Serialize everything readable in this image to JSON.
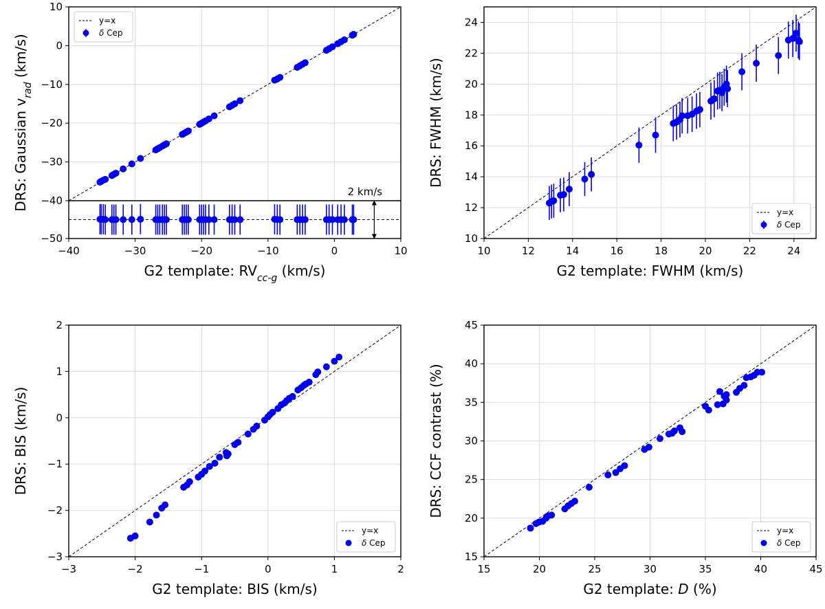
{
  "chart_data": [
    {
      "id": "a",
      "type": "scatter",
      "xlabel": "G2 template: RV_{cc-g} (km/s)",
      "ylabel": "DRS: Gaussian v_{rad} (km/s)",
      "xlim": [
        -40,
        10
      ],
      "ylim": [
        -40,
        10
      ],
      "xticks": [
        -40,
        -30,
        -20,
        -10,
        0,
        10
      ],
      "yticks": [
        -30,
        -20,
        -10,
        0,
        10
      ],
      "grid": true,
      "legend_position": "upper-left",
      "legend": [
        "y=x",
        "δ Cep"
      ],
      "color": "#0000ee",
      "reference_line": "y=x",
      "points": [
        [
          -35.3,
          -35.2
        ],
        [
          -35.1,
          -35.0
        ],
        [
          -34.8,
          -34.7
        ],
        [
          -34.5,
          -34.5
        ],
        [
          -33.5,
          -33.5
        ],
        [
          -33.2,
          -33.2
        ],
        [
          -32.9,
          -32.9
        ],
        [
          -31.8,
          -31.8
        ],
        [
          -30.5,
          -30.5
        ],
        [
          -29.2,
          -29.1
        ],
        [
          -26.9,
          -26.9
        ],
        [
          -26.6,
          -26.6
        ],
        [
          -26.3,
          -26.3
        ],
        [
          -25.9,
          -25.9
        ],
        [
          -25.6,
          -25.6
        ],
        [
          -25.3,
          -25.3
        ],
        [
          -22.9,
          -22.9
        ],
        [
          -22.6,
          -22.6
        ],
        [
          -22.3,
          -22.3
        ],
        [
          -22.0,
          -22.0
        ],
        [
          -20.3,
          -20.3
        ],
        [
          -20.0,
          -20.0
        ],
        [
          -19.7,
          -19.7
        ],
        [
          -19.4,
          -19.4
        ],
        [
          -18.9,
          -18.9
        ],
        [
          -18.1,
          -18.1
        ],
        [
          -15.8,
          -15.8
        ],
        [
          -15.4,
          -15.4
        ],
        [
          -15.0,
          -15.0
        ],
        [
          -14.2,
          -14.2
        ],
        [
          -9.0,
          -8.9
        ],
        [
          -8.6,
          -8.6
        ],
        [
          -8.2,
          -8.2
        ],
        [
          -5.6,
          -5.6
        ],
        [
          -5.2,
          -5.2
        ],
        [
          -4.8,
          -4.8
        ],
        [
          -4.4,
          -4.4
        ],
        [
          -1.2,
          -1.2
        ],
        [
          -0.8,
          -0.8
        ],
        [
          -0.3,
          -0.3
        ],
        [
          0.5,
          0.5
        ],
        [
          1.0,
          1.0
        ],
        [
          1.5,
          1.5
        ],
        [
          2.7,
          2.7
        ],
        [
          2.9,
          2.9
        ]
      ],
      "inset": {
        "ylim": [
          -50,
          -40
        ],
        "reference_level": -45,
        "scale_annotation": "2 km/s"
      }
    },
    {
      "id": "b",
      "type": "scatter",
      "xlabel": "G2 template: FWHM (km/s)",
      "ylabel": "DRS: FWHM (km/s)",
      "xlim": [
        10,
        25
      ],
      "ylim": [
        10,
        25
      ],
      "xticks": [
        10,
        12,
        14,
        16,
        18,
        20,
        22,
        24
      ],
      "yticks": [
        10,
        12,
        14,
        16,
        18,
        20,
        22,
        24
      ],
      "grid": true,
      "legend_position": "lower-right",
      "legend": [
        "y=x",
        "δ Cep"
      ],
      "color": "#0000ee",
      "reference_line": "y=x",
      "points": [
        [
          12.95,
          12.3,
          1.1
        ],
        [
          13.05,
          12.4,
          1.1
        ],
        [
          13.15,
          12.45,
          1.1
        ],
        [
          13.45,
          12.8,
          1.1
        ],
        [
          13.6,
          12.85,
          1.1
        ],
        [
          13.85,
          13.2,
          1.1
        ],
        [
          14.55,
          13.85,
          1.1
        ],
        [
          14.85,
          14.15,
          1.1
        ],
        [
          17.0,
          16.05,
          1.15
        ],
        [
          17.75,
          16.7,
          1.15
        ],
        [
          18.55,
          17.45,
          1.15
        ],
        [
          18.7,
          17.55,
          1.15
        ],
        [
          18.85,
          17.7,
          1.15
        ],
        [
          18.95,
          17.95,
          1.15
        ],
        [
          19.2,
          17.95,
          1.15
        ],
        [
          19.4,
          18.05,
          1.15
        ],
        [
          19.6,
          18.25,
          1.15
        ],
        [
          19.75,
          18.35,
          1.15
        ],
        [
          20.25,
          18.9,
          1.2
        ],
        [
          20.4,
          19.05,
          1.2
        ],
        [
          20.55,
          19.55,
          1.2
        ],
        [
          20.65,
          19.6,
          1.2
        ],
        [
          20.75,
          19.45,
          1.2
        ],
        [
          20.85,
          19.8,
          1.2
        ],
        [
          20.95,
          20.0,
          1.2
        ],
        [
          21.0,
          19.7,
          1.2
        ],
        [
          21.65,
          20.8,
          1.2
        ],
        [
          22.3,
          21.35,
          1.2
        ],
        [
          23.3,
          21.85,
          1.2
        ],
        [
          23.75,
          22.85,
          1.2
        ],
        [
          23.95,
          22.95,
          1.2
        ],
        [
          24.1,
          23.3,
          1.2
        ],
        [
          24.2,
          22.85,
          1.2
        ],
        [
          24.25,
          22.75,
          1.2
        ]
      ]
    },
    {
      "id": "c",
      "type": "scatter",
      "xlabel": "G2 template: BIS (km/s)",
      "ylabel": "DRS: BIS (km/s)",
      "xlim": [
        -3,
        2
      ],
      "ylim": [
        -3,
        2
      ],
      "xticks": [
        -3,
        -2,
        -1,
        0,
        1,
        2
      ],
      "yticks": [
        -3,
        -2,
        -1,
        0,
        1,
        2
      ],
      "grid": true,
      "legend_position": "lower-right",
      "legend": [
        "y=x",
        "δ Cep"
      ],
      "color": "#0000ee",
      "reference_line": "y=x",
      "points": [
        [
          -2.07,
          -2.6
        ],
        [
          -2.0,
          -2.55
        ],
        [
          -1.78,
          -2.25
        ],
        [
          -1.68,
          -2.1
        ],
        [
          -1.6,
          -1.95
        ],
        [
          -1.55,
          -1.88
        ],
        [
          -1.27,
          -1.5
        ],
        [
          -1.22,
          -1.45
        ],
        [
          -1.18,
          -1.38
        ],
        [
          -1.05,
          -1.28
        ],
        [
          -1.0,
          -1.22
        ],
        [
          -0.95,
          -1.15
        ],
        [
          -0.88,
          -1.05
        ],
        [
          -0.8,
          -0.98
        ],
        [
          -0.73,
          -0.85
        ],
        [
          -0.63,
          -0.75
        ],
        [
          -0.6,
          -0.78
        ],
        [
          -0.62,
          -0.82
        ],
        [
          -0.5,
          -0.58
        ],
        [
          -0.45,
          -0.53
        ],
        [
          -0.3,
          -0.35
        ],
        [
          -0.22,
          -0.25
        ],
        [
          -0.17,
          -0.18
        ],
        [
          -0.05,
          -0.05
        ],
        [
          0.0,
          0.02
        ],
        [
          0.03,
          0.07
        ],
        [
          0.07,
          0.12
        ],
        [
          0.15,
          0.2
        ],
        [
          0.2,
          0.28
        ],
        [
          0.25,
          0.32
        ],
        [
          0.28,
          0.37
        ],
        [
          0.32,
          0.42
        ],
        [
          0.37,
          0.46
        ],
        [
          0.45,
          0.6
        ],
        [
          0.5,
          0.65
        ],
        [
          0.54,
          0.7
        ],
        [
          0.57,
          0.73
        ],
        [
          0.62,
          0.77
        ],
        [
          0.72,
          0.93
        ],
        [
          0.75,
          0.99
        ],
        [
          0.88,
          1.1
        ],
        [
          1.0,
          1.22
        ],
        [
          1.07,
          1.31
        ]
      ]
    },
    {
      "id": "d",
      "type": "scatter",
      "xlabel": "G2 template: D (%)",
      "ylabel": "DRS: CCF contrast (%)",
      "xlim": [
        15,
        45
      ],
      "ylim": [
        15,
        45
      ],
      "xticks": [
        15,
        20,
        25,
        30,
        35,
        40,
        45
      ],
      "yticks": [
        15,
        20,
        25,
        30,
        35,
        40,
        45
      ],
      "grid": true,
      "legend_position": "lower-right",
      "legend": [
        "y=x",
        "δ Cep"
      ],
      "color": "#0000ee",
      "reference_line": "y=x",
      "points": [
        [
          19.2,
          18.7
        ],
        [
          19.7,
          19.3
        ],
        [
          20.0,
          19.5
        ],
        [
          20.3,
          19.6
        ],
        [
          20.6,
          20.0
        ],
        [
          20.8,
          20.3
        ],
        [
          21.1,
          20.4
        ],
        [
          22.3,
          21.2
        ],
        [
          22.6,
          21.6
        ],
        [
          22.9,
          21.9
        ],
        [
          23.2,
          22.2
        ],
        [
          24.5,
          24.0
        ],
        [
          26.2,
          25.6
        ],
        [
          26.9,
          25.9
        ],
        [
          27.3,
          26.4
        ],
        [
          27.7,
          26.8
        ],
        [
          29.5,
          28.9
        ],
        [
          29.9,
          29.2
        ],
        [
          30.9,
          30.3
        ],
        [
          31.7,
          30.9
        ],
        [
          32.0,
          31.0
        ],
        [
          32.2,
          31.3
        ],
        [
          32.7,
          31.7
        ],
        [
          32.9,
          31.2
        ],
        [
          35.0,
          34.5
        ],
        [
          35.3,
          34.0
        ],
        [
          36.1,
          34.7
        ],
        [
          36.3,
          36.4
        ],
        [
          36.6,
          34.8
        ],
        [
          36.7,
          35.8
        ],
        [
          36.9,
          36.0
        ],
        [
          36.9,
          35.3
        ],
        [
          37.8,
          36.3
        ],
        [
          38.1,
          36.8
        ],
        [
          38.5,
          37.2
        ],
        [
          38.7,
          38.2
        ],
        [
          39.1,
          38.3
        ],
        [
          39.4,
          38.5
        ],
        [
          39.7,
          38.9
        ],
        [
          40.1,
          38.9
        ]
      ]
    }
  ]
}
